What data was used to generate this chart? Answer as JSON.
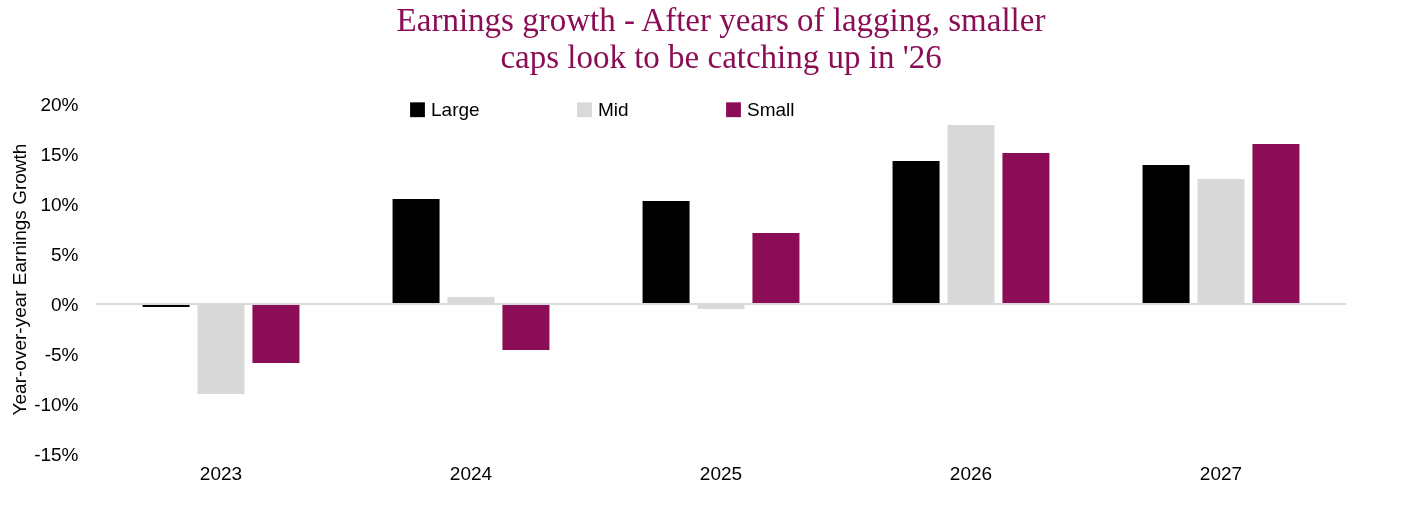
{
  "chart_data": {
    "type": "bar",
    "title": "Earnings growth - After years of lagging, smaller caps look to be catching up in '26",
    "ylabel": "Year-over-year Earnings Growth",
    "categories": [
      "2023",
      "2024",
      "2025",
      "2026",
      "2027"
    ],
    "series": [
      {
        "name": "Large",
        "color": "#000000",
        "values": [
          -0.3,
          10.5,
          10.3,
          14.3,
          13.9
        ]
      },
      {
        "name": "Mid",
        "color": "#d9d9d9",
        "values": [
          -9.0,
          0.7,
          -0.5,
          17.9,
          12.5
        ]
      },
      {
        "name": "Small",
        "color": "#8a0d55",
        "values": [
          -5.9,
          -4.6,
          7.1,
          15.1,
          16.0
        ]
      }
    ],
    "ylim": [
      -15,
      20
    ],
    "yticks": [
      {
        "value": -15,
        "label": "-15%"
      },
      {
        "value": -10,
        "label": "-10%"
      },
      {
        "value": -5,
        "label": "-5%"
      },
      {
        "value": 0,
        "label": "0%"
      },
      {
        "value": 5,
        "label": "5%"
      },
      {
        "value": 10,
        "label": "10%"
      },
      {
        "value": 15,
        "label": "15%"
      },
      {
        "value": 20,
        "label": "20%"
      }
    ],
    "ref_lines": [
      {
        "axis": "y",
        "value": 0,
        "color": "#d9d9d9"
      }
    ],
    "grid": false,
    "legend": "top"
  }
}
